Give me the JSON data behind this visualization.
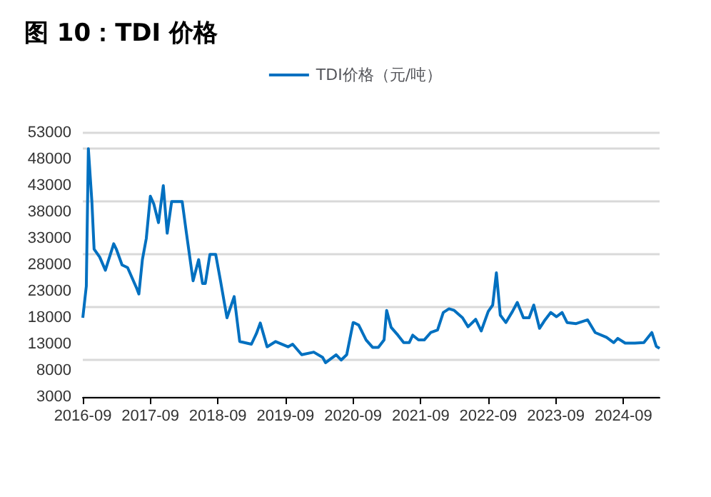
{
  "chart_data": {
    "type": "line",
    "title": "图 10：TDI 价格",
    "x": [
      "2016-09",
      "2016-09-20",
      "2016-10",
      "2016-10-20",
      "2016-11",
      "2016-12",
      "2017-01",
      "2017-02-15",
      "2017-03",
      "2017-04",
      "2017-05",
      "2017-06-20",
      "2017-07",
      "2017-07-20",
      "2017-08-10",
      "2017-09",
      "2017-09-20",
      "2017-10-15",
      "2017-11-10",
      "2017-12",
      "2017-12-25",
      "2018-02-20",
      "2018-03-15",
      "2018-04-20",
      "2018-05-20",
      "2018-06-10",
      "2018-06-25",
      "2018-07-20",
      "2018-08-20",
      "2018-09-15",
      "2018-10-20",
      "2018-11-28",
      "2018-12-28",
      "2019-03",
      "2019-03-28",
      "2019-04-18",
      "2019-05-25",
      "2019-07-10",
      "2019-09-15",
      "2019-10-10",
      "2019-11-28",
      "2020-02",
      "2020-03-20",
      "2020-04-05",
      "2020-06",
      "2020-06-28",
      "2020-07-28",
      "2020-09",
      "2020-09-10",
      "2020-10",
      "2020-11-10",
      "2020-12-15",
      "2021-01-15",
      "2021-02-15",
      "2021-03",
      "2021-03-25",
      "2021-05",
      "2021-06",
      "2021-07",
      "2021-07-20",
      "2021-08-20",
      "2021-09-20",
      "2021-10-25",
      "2021-12",
      "2022-01",
      "2022-02",
      "2022-03",
      "2022-04-15",
      "2022-05-15",
      "2022-06-25",
      "2022-07-25",
      "2022-09",
      "2022-09-25",
      "2022-10-15",
      "2022-11-05",
      "2022-12-05",
      "2023-01-10",
      "2023-02-05",
      "2023-03-10",
      "2023-04-10",
      "2023-05-05",
      "2023-06-05",
      "2023-07-05",
      "2023-08-05",
      "2023-09-05",
      "2023-10-05",
      "2023-11",
      "2023-12-20",
      "2024-02-20",
      "2024-04",
      "2024-06",
      "2024-07-10",
      "2024-08",
      "2024-09-10",
      "2024-11",
      "2024-12-20",
      "2025-02",
      "2025-02-25",
      "2025-03-15"
    ],
    "series": [
      {
        "name": "TDI价格（元/吨）",
        "color": "#0070c0",
        "values": [
          18000,
          24000,
          50000,
          40000,
          31000,
          29500,
          27000,
          32000,
          31000,
          28000,
          27500,
          23500,
          22500,
          29000,
          33000,
          41000,
          39500,
          36000,
          43000,
          34000,
          40000,
          40000,
          34000,
          25000,
          29000,
          24500,
          24500,
          30000,
          30000,
          25000,
          18000,
          22000,
          13500,
          13000,
          15000,
          17000,
          12500,
          13500,
          12500,
          13000,
          11000,
          11500,
          10500,
          9500,
          11000,
          10000,
          11000,
          17100,
          17000,
          16600,
          13800,
          12400,
          12400,
          13800,
          19400,
          16200,
          14700,
          13300,
          13300,
          14700,
          13800,
          13800,
          15200,
          15700,
          19000,
          19700,
          19400,
          18000,
          16300,
          17700,
          15500,
          19200,
          20400,
          26500,
          18500,
          17100,
          19200,
          20900,
          18000,
          18000,
          20400,
          16000,
          17600,
          19000,
          18200,
          19000,
          17100,
          16900,
          17600,
          15200,
          14300,
          13300,
          14100,
          13200,
          13200,
          13300,
          15200,
          12600,
          12200
        ]
      }
    ],
    "xlim": [
      "2016-09",
      "2025-03-15"
    ],
    "xticks": [
      "2016-09",
      "2017-09",
      "2018-09",
      "2019-09",
      "2020-09",
      "2021-09",
      "2022-09",
      "2023-09",
      "2024-09"
    ],
    "ylim": [
      3000,
      53000
    ],
    "yticks": [
      3000,
      8000,
      13000,
      18000,
      23000,
      28000,
      33000,
      38000,
      43000,
      48000,
      53000
    ],
    "grid": "y",
    "legend": "top",
    "marker": "none",
    "line_style": "solid"
  }
}
